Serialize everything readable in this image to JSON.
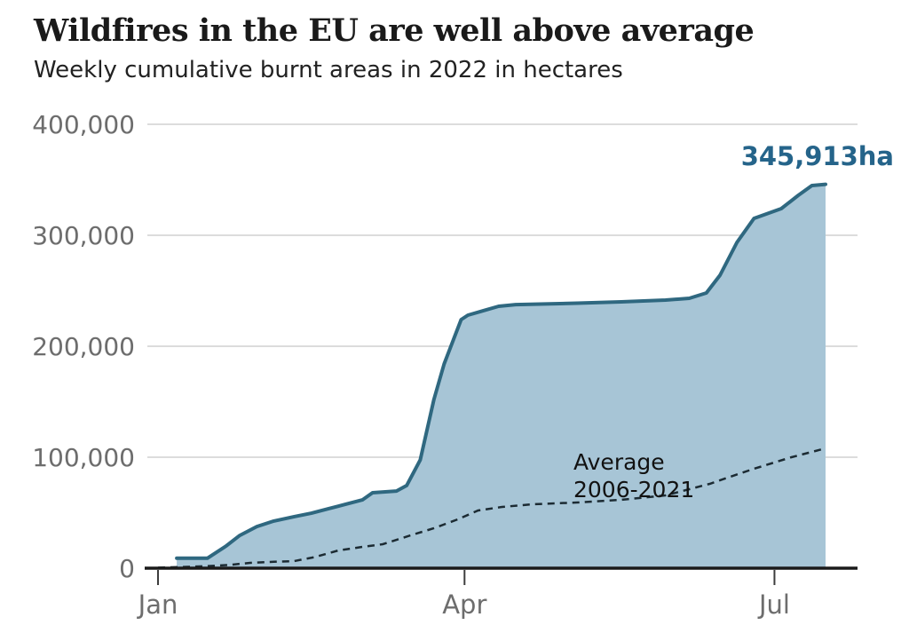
{
  "header": {
    "title": "Wildfires in the EU are well above average",
    "subtitle": "Weekly cumulative burnt areas in 2022 in hectares"
  },
  "chart_data": {
    "type": "area",
    "title": "Wildfires in the EU are well above average",
    "subtitle": "Weekly cumulative burnt areas in 2022 in hectares",
    "unit": "hectares",
    "ylim": [
      0,
      400000
    ],
    "x_range_days": [
      0,
      196
    ],
    "grid": "horizontal",
    "legend_position": "inline-annotation",
    "end_label": "345,913ha",
    "end_value": 345913,
    "annotation": {
      "line1": "Average",
      "line2": "2006-2021"
    },
    "y_ticks": [
      {
        "value": 0,
        "label": "0"
      },
      {
        "value": 100000,
        "label": "100,000"
      },
      {
        "value": 200000,
        "label": "200,000"
      },
      {
        "value": 300000,
        "label": "300,000"
      },
      {
        "value": 400000,
        "label": "400,000"
      }
    ],
    "x_ticks": [
      {
        "day": 0,
        "label": "Jan"
      },
      {
        "day": 90,
        "label": "Apr"
      },
      {
        "day": 181,
        "label": "Jul"
      }
    ],
    "series": [
      {
        "name": "2022",
        "style": "area",
        "color": "#2f6880",
        "fill": "#a7c5d6",
        "points": [
          [
            5.5,
            9000
          ],
          [
            14.5,
            9000
          ],
          [
            20,
            20000
          ],
          [
            24,
            29500
          ],
          [
            29,
            37500
          ],
          [
            34,
            42500
          ],
          [
            40,
            46500
          ],
          [
            45,
            49500
          ],
          [
            50,
            53500
          ],
          [
            55,
            57500
          ],
          [
            60,
            61500
          ],
          [
            63,
            68000
          ],
          [
            70,
            69500
          ],
          [
            73,
            74500
          ],
          [
            77,
            97500
          ],
          [
            81,
            152000
          ],
          [
            84,
            184000
          ],
          [
            87,
            208000
          ],
          [
            89,
            224000
          ],
          [
            91,
            228000
          ],
          [
            96,
            232500
          ],
          [
            100,
            236000
          ],
          [
            105,
            237500
          ],
          [
            123,
            238800
          ],
          [
            136,
            240000
          ],
          [
            149,
            241600
          ],
          [
            156,
            243200
          ],
          [
            161,
            248000
          ],
          [
            165,
            264000
          ],
          [
            170,
            293600
          ],
          [
            175,
            315200
          ],
          [
            183,
            324000
          ],
          [
            188,
            336000
          ],
          [
            192,
            344800
          ],
          [
            196,
            345913
          ]
        ]
      },
      {
        "name": "Average 2006-2021",
        "style": "dashed-line",
        "color": "#1c2b33",
        "points": [
          [
            0,
            500
          ],
          [
            7,
            1100
          ],
          [
            14,
            1800
          ],
          [
            21,
            3000
          ],
          [
            27,
            4800
          ],
          [
            34,
            5800
          ],
          [
            40,
            6400
          ],
          [
            46,
            10000
          ],
          [
            53,
            16000
          ],
          [
            60,
            19200
          ],
          [
            66,
            21600
          ],
          [
            75,
            30400
          ],
          [
            81,
            36000
          ],
          [
            88,
            44000
          ],
          [
            94,
            52000
          ],
          [
            101,
            55200
          ],
          [
            110,
            57600
          ],
          [
            123,
            59200
          ],
          [
            136,
            61600
          ],
          [
            149,
            65600
          ],
          [
            162,
            76000
          ],
          [
            168,
            82400
          ],
          [
            175,
            89600
          ],
          [
            186,
            100000
          ],
          [
            196,
            108000
          ]
        ]
      }
    ],
    "colors": {
      "line_2022": "#2f6880",
      "fill_2022": "#a7c5d6",
      "average_line": "#1c2b33",
      "end_label": "#25648a",
      "axis": "#1a1a1a",
      "gridline": "#dcdcdc",
      "tick_text": "#6d6d6d"
    }
  }
}
